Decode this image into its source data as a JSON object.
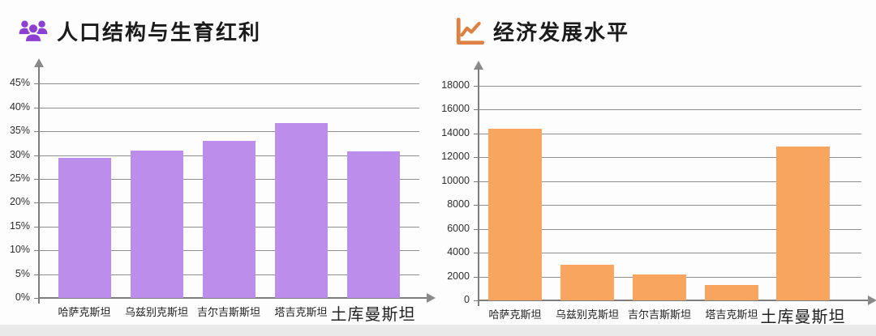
{
  "chart_data": [
    {
      "type": "bar",
      "title": "人口结构与生育红利",
      "icon": "people-group-icon",
      "icon_color": "#8b40d2",
      "bar_color": "#bc8dea",
      "categories": [
        "哈萨克斯坦",
        "乌兹别克斯坦",
        "吉尔吉斯斯坦",
        "塔吉克斯坦",
        "土库曼斯坦"
      ],
      "values": [
        29.5,
        31,
        33,
        36.7,
        30.8
      ],
      "unit": "%",
      "xlabel": "",
      "ylabel": "",
      "ylim": [
        0,
        45
      ],
      "y_tick_step": 5,
      "y_tick_labels": [
        "0%",
        "5%",
        "10%",
        "15%",
        "20%",
        "25%",
        "30%",
        "35%",
        "40%",
        "45%"
      ],
      "grid": true,
      "legend": "none"
    },
    {
      "type": "bar",
      "title": "经济发展水平",
      "icon": "trend-line-chart-icon",
      "icon_color": "#dc8244",
      "bar_color": "#f7a55f",
      "categories": [
        "哈萨克斯坦",
        "乌兹别克斯坦",
        "吉尔吉斯斯坦",
        "塔吉克斯坦",
        "土库曼斯坦"
      ],
      "values": [
        14400,
        3000,
        2200,
        1300,
        12900
      ],
      "unit": "",
      "xlabel": "",
      "ylabel": "",
      "ylim": [
        0,
        18000
      ],
      "y_tick_step": 2000,
      "y_tick_labels": [
        "0",
        "2000",
        "4000",
        "6000",
        "8000",
        "10000",
        "12000",
        "14000",
        "16000",
        "18000"
      ],
      "grid": true,
      "legend": "none"
    }
  ],
  "colors": {
    "grid": "#8f8f8f",
    "axis": "#7d7d7d",
    "title_text": "#1b1b1b",
    "tick_text": "#2e2e2e",
    "bottom_strip": "#e9e9e9"
  }
}
